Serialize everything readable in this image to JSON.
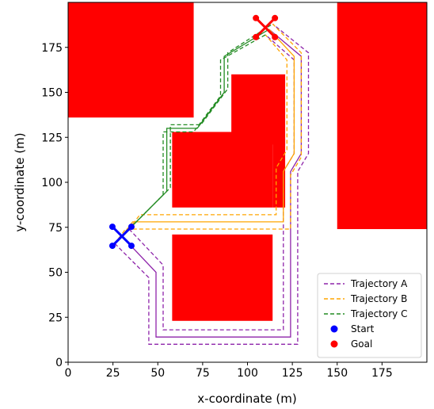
{
  "chart_data": {
    "type": "line",
    "xlabel": "x-coordinate (m)",
    "ylabel": "y-coordinate (m)",
    "xlim": [
      0,
      200
    ],
    "ylim": [
      0,
      200
    ],
    "x_ticks": [
      0,
      25,
      50,
      75,
      100,
      125,
      150,
      175
    ],
    "y_ticks": [
      0,
      25,
      50,
      75,
      100,
      125,
      150,
      175
    ],
    "grid": false,
    "legend_position": "lower right",
    "obstacles": [
      {
        "x": [
          0,
          70
        ],
        "y": [
          136,
          200
        ],
        "color": "#ff0000"
      },
      {
        "x": [
          150,
          200
        ],
        "y": [
          74,
          200
        ],
        "color": "#ff0000"
      },
      {
        "x": [
          91,
          121
        ],
        "y": [
          121,
          160
        ],
        "color": "#ff0000"
      },
      {
        "x": [
          58,
          114
        ],
        "y": [
          86,
          128
        ],
        "color": "#ff0000"
      },
      {
        "x": [
          58,
          114
        ],
        "y": [
          23,
          71
        ],
        "color": "#ff0000"
      },
      {
        "x": [
          114,
          121
        ],
        "y": [
          86,
          124
        ],
        "color": "#ff0000"
      }
    ],
    "series": [
      {
        "name": "Trajectory A",
        "color": "#8e24aa",
        "center": [
          [
            30,
            70
          ],
          [
            49,
            50
          ],
          [
            49,
            14
          ],
          [
            124,
            14
          ],
          [
            124,
            106
          ],
          [
            130,
            116
          ],
          [
            130,
            170
          ],
          [
            112,
            185
          ]
        ],
        "offset_dashed": [
          [
            26,
            66
          ],
          [
            45,
            47
          ],
          [
            45,
            10
          ],
          [
            128,
            10
          ],
          [
            128,
            106
          ],
          [
            134,
            116
          ],
          [
            134,
            172
          ],
          [
            114,
            188
          ]
        ],
        "inner_dashed": [
          [
            34,
            74
          ],
          [
            53,
            54
          ],
          [
            53,
            18
          ],
          [
            120,
            18
          ],
          [
            120,
            106
          ],
          [
            126,
            116
          ],
          [
            126,
            168
          ],
          [
            110,
            182
          ]
        ]
      },
      {
        "name": "Trajectory B",
        "color": "#ffa500",
        "center": [
          [
            30,
            70
          ],
          [
            36,
            78
          ],
          [
            120,
            78
          ],
          [
            120,
            106
          ],
          [
            126,
            116
          ],
          [
            126,
            170
          ],
          [
            112,
            185
          ]
        ],
        "offset_dashed": [
          [
            26,
            66
          ],
          [
            32,
            74
          ],
          [
            124,
            74
          ],
          [
            124,
            104
          ],
          [
            130,
            114
          ],
          [
            130,
            172
          ],
          [
            114,
            188
          ]
        ],
        "inner_dashed": [
          [
            34,
            74
          ],
          [
            40,
            82
          ],
          [
            116,
            82
          ],
          [
            116,
            108
          ],
          [
            122,
            118
          ],
          [
            122,
            168
          ],
          [
            110,
            182
          ]
        ]
      },
      {
        "name": "Trajectory C",
        "color": "#228b22",
        "center": [
          [
            30,
            70
          ],
          [
            55,
            95
          ],
          [
            55,
            130
          ],
          [
            72,
            130
          ],
          [
            87,
            150
          ],
          [
            87,
            170
          ],
          [
            112,
            185
          ]
        ],
        "offset_dashed": [
          [
            32,
            72
          ],
          [
            57,
            97
          ],
          [
            57,
            132
          ],
          [
            74,
            132
          ],
          [
            89,
            152
          ],
          [
            89,
            172
          ],
          [
            114,
            188
          ]
        ],
        "inner_dashed": [
          [
            28,
            68
          ],
          [
            53,
            93
          ],
          [
            53,
            128
          ],
          [
            70,
            128
          ],
          [
            85,
            148
          ],
          [
            85,
            168
          ],
          [
            110,
            182
          ]
        ]
      }
    ],
    "start": {
      "name": "Start",
      "x": 30,
      "y": 70,
      "color": "#0000ff"
    },
    "goal": {
      "name": "Goal",
      "x": 110,
      "y": 186,
      "color": "#ff0000"
    }
  }
}
